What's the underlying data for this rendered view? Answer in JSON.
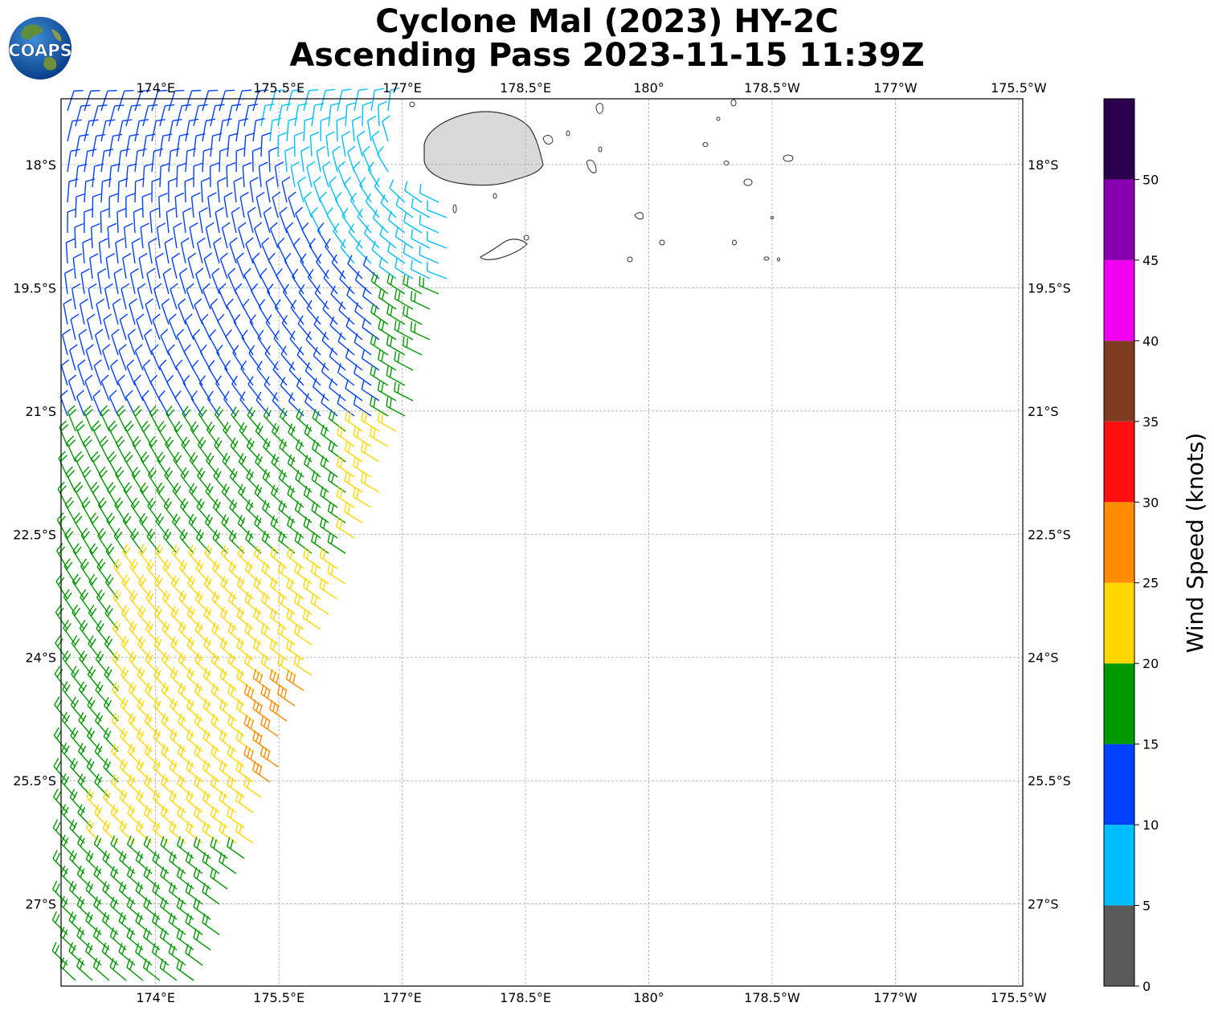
{
  "title": {
    "line1": "Cyclone Mal (2023) HY-2C",
    "line2": "Ascending Pass 2023-11-15 11:39Z"
  },
  "logo": {
    "text": "COAPS",
    "icon": "globe-logo"
  },
  "map": {
    "lon_range": [
      172.6,
      184.3
    ],
    "lat_range": [
      -28.0,
      -17.2
    ],
    "x_ticks": [
      {
        "lon": 173.75,
        "label": "174°E"
      },
      {
        "lon": 175.25,
        "label": "175.5°E"
      },
      {
        "lon": 176.75,
        "label": "177°E"
      },
      {
        "lon": 178.25,
        "label": "178.5°E"
      },
      {
        "lon": 179.75,
        "label": "180°"
      },
      {
        "lon": 181.25,
        "label": "178.5°W"
      },
      {
        "lon": 182.75,
        "label": "177°W"
      },
      {
        "lon": 184.25,
        "label": "175.5°W"
      }
    ],
    "y_ticks": [
      {
        "lat": -18.0,
        "label": "18°S"
      },
      {
        "lat": -19.5,
        "label": "19.5°S"
      },
      {
        "lat": -21.0,
        "label": "21°S"
      },
      {
        "lat": -22.5,
        "label": "22.5°S"
      },
      {
        "lat": -24.0,
        "label": "24°S"
      },
      {
        "lat": -25.5,
        "label": "25.5°S"
      },
      {
        "lat": -27.0,
        "label": "27°S"
      }
    ],
    "grid": true
  },
  "colorbar": {
    "label": "Wind Speed (knots)",
    "ticks": [
      "0",
      "5",
      "10",
      "15",
      "20",
      "25",
      "30",
      "35",
      "40",
      "45",
      "50"
    ],
    "colors": [
      "#595959",
      "#00bfff",
      "#0040ff",
      "#009900",
      "#ffd700",
      "#ff8c00",
      "#ff0f0f",
      "#7f3a22",
      "#f000f0",
      "#8800b0",
      "#2a004f"
    ],
    "vmax": 55
  }
}
